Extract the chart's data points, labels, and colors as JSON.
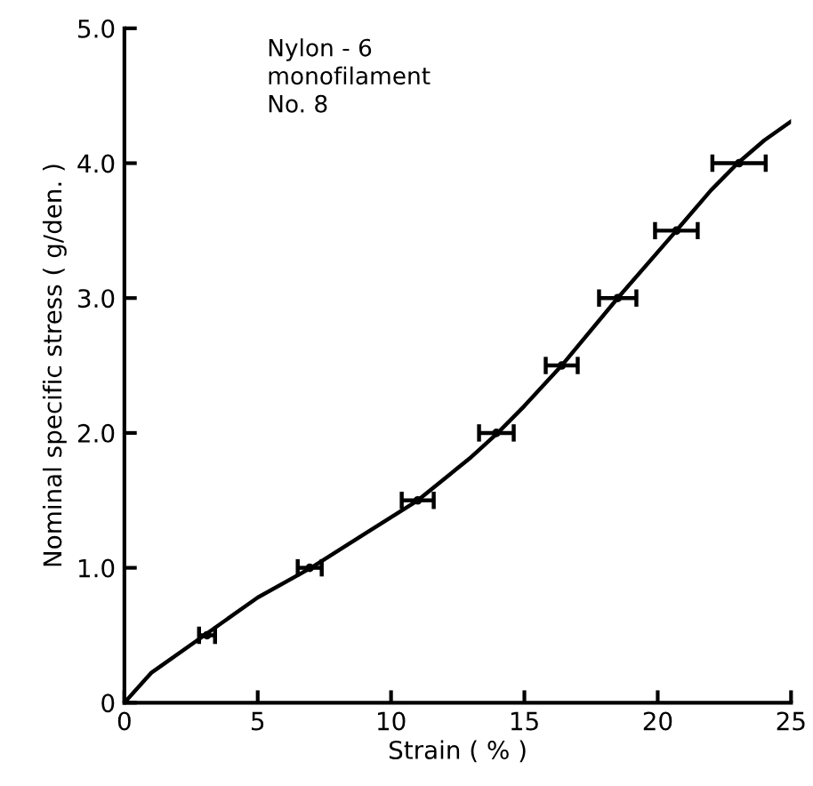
{
  "chart_data": {
    "type": "line",
    "xlabel": "Strain ( % )",
    "ylabel": "Nominal specific stress ( g/den. )",
    "annotations": [
      "Nylon - 6\nmonofilament\nNo. 8"
    ],
    "xlim": [
      0,
      25
    ],
    "ylim": [
      0,
      5
    ],
    "xticks": [
      0,
      5,
      10,
      15,
      20,
      25
    ],
    "yticks": [
      0,
      {
        "value": 1,
        "label": "1.0"
      },
      {
        "value": 2,
        "label": "2.0"
      },
      {
        "value": 3,
        "label": "3.0"
      },
      {
        "value": 4,
        "label": "4.0"
      },
      {
        "value": 5,
        "label": "5.0"
      }
    ],
    "grid": false,
    "legend": false,
    "series": [
      {
        "color": "#000000",
        "marker": "none",
        "x": [
          0,
          1,
          3,
          5,
          7,
          9,
          11,
          13,
          14,
          15,
          16.4,
          18.5,
          20.7,
          22,
          23,
          24,
          25
        ],
        "values": [
          0,
          0.22,
          0.5,
          0.78,
          1.0,
          1.25,
          1.5,
          1.82,
          2.0,
          2.2,
          2.5,
          3.0,
          3.5,
          3.8,
          4.0,
          4.17,
          4.31
        ]
      },
      {
        "type": "scatter",
        "color": "#000000",
        "marker": "circle",
        "x": [
          3.1,
          6.95,
          11.0,
          13.95,
          16.4,
          18.5,
          20.7,
          23.05
        ],
        "values": [
          0.5,
          1.0,
          1.5,
          2.0,
          2.5,
          3.0,
          3.5,
          4.0
        ],
        "xerrors": [
          0.3,
          0.45,
          0.6,
          0.65,
          0.6,
          0.7,
          0.8,
          1.0
        ]
      }
    ]
  }
}
